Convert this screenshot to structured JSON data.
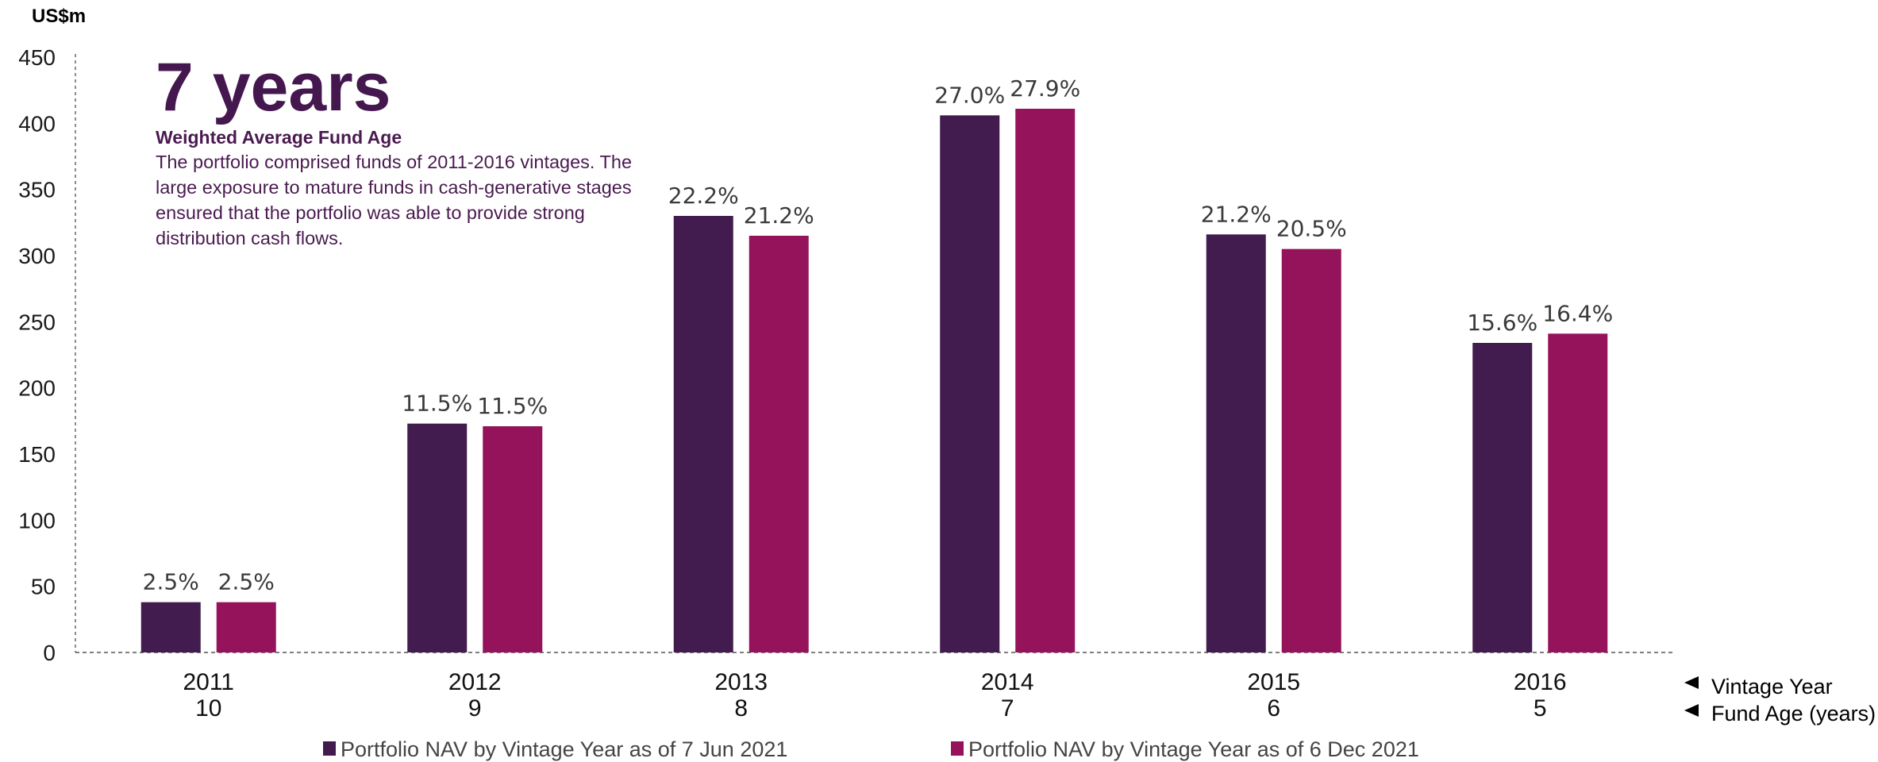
{
  "callout": {
    "headline": "7 years",
    "subtitle": "Weighted Average Fund Age",
    "body": "The portfolio comprised funds of 2011-2016 vintages. The large exposure to mature funds in cash-generative stages ensured that the portfolio was able to provide strong distribution cash flows."
  },
  "axis_labels": {
    "row1": "Vintage Year",
    "row2": "Fund Age (years)"
  },
  "chart_data": {
    "type": "bar",
    "ylabel": "US$m",
    "ylim": [
      0,
      450
    ],
    "yticks": [
      0,
      50,
      100,
      150,
      200,
      250,
      300,
      350,
      400,
      450
    ],
    "grid": false,
    "legend_position": "bottom",
    "categories": [
      "2011",
      "2012",
      "2013",
      "2014",
      "2015",
      "2016"
    ],
    "fund_ages": [
      "10",
      "9",
      "8",
      "7",
      "6",
      "5"
    ],
    "series": [
      {
        "name": "Portfolio NAV by Vintage Year as of 7 Jun 2021",
        "color": "#421b4f",
        "values": [
          38,
          173,
          330,
          406,
          316,
          234
        ],
        "labels": [
          "2.5%",
          "11.5%",
          "22.2%",
          "27.0%",
          "21.2%",
          "15.6%"
        ]
      },
      {
        "name": "Portfolio NAV by Vintage Year as of 6 Dec 2021",
        "color": "#95135b",
        "values": [
          38,
          171,
          315,
          411,
          305,
          241
        ],
        "labels": [
          "2.5%",
          "11.5%",
          "21.2%",
          "27.9%",
          "20.5%",
          "16.4%"
        ]
      }
    ]
  }
}
